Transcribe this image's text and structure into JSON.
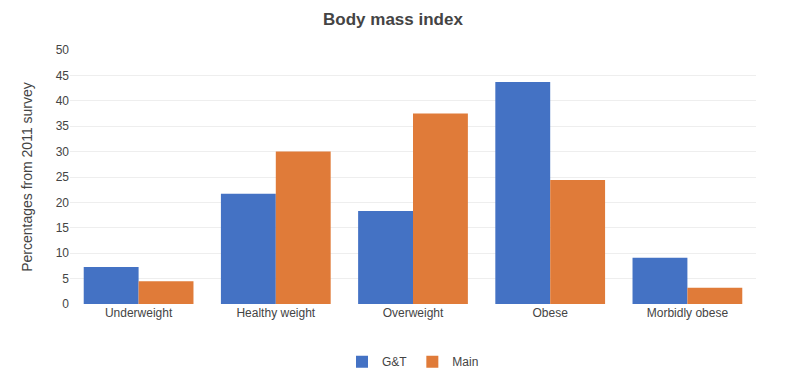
{
  "chart_data": {
    "type": "bar",
    "title": "Body mass index",
    "ylabel": "Percentages from 2011 survey",
    "categories": [
      "Underweight",
      "Healthy weight",
      "Overweight",
      "Obese",
      "Morbidly obese"
    ],
    "series": [
      {
        "name": "G&T",
        "color": "#4472c4",
        "values": [
          7.3,
          21.7,
          18.3,
          43.7,
          9.1
        ]
      },
      {
        "name": "Main",
        "color": "#e07b39",
        "values": [
          4.5,
          30.0,
          37.5,
          24.4,
          3.2
        ]
      }
    ],
    "ylim": [
      0,
      50
    ],
    "yticks": [
      0,
      5,
      10,
      15,
      20,
      25,
      30,
      35,
      40,
      45,
      50
    ],
    "grid": true,
    "legend": "bottom"
  }
}
